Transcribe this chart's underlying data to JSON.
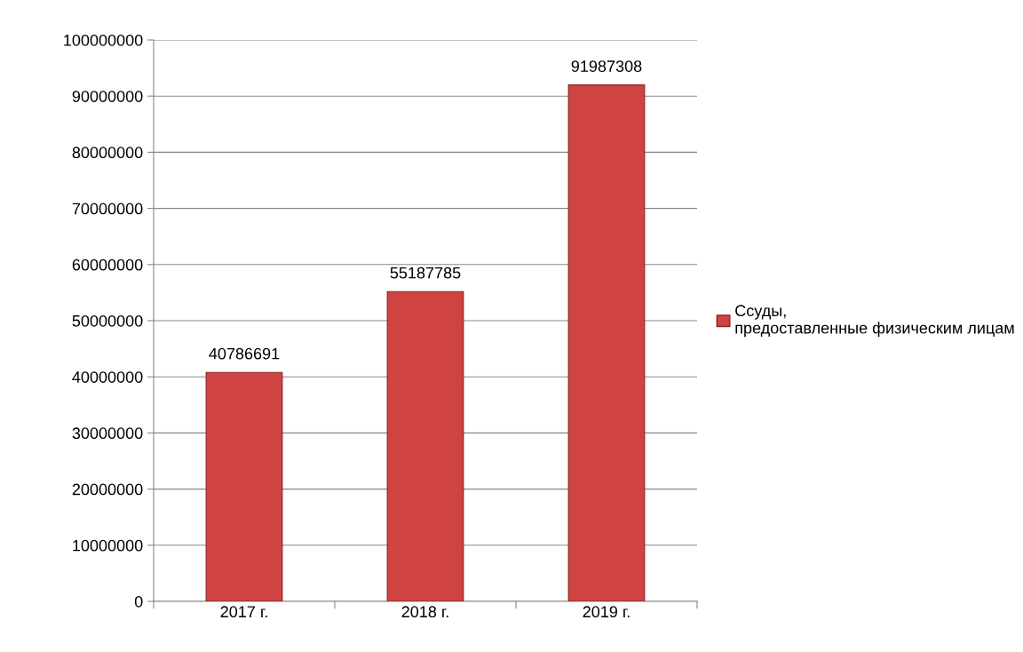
{
  "chart_data": {
    "type": "bar",
    "categories": [
      "2017 г.",
      "2018 г.",
      "2019 г."
    ],
    "series": [
      {
        "name": "Ссуды, предоставленные физическим лицам",
        "color": "#d04343",
        "values": [
          40786691,
          55187785,
          91987308
        ]
      }
    ],
    "ylim": [
      0,
      100000000
    ],
    "yticks": [
      0,
      10000000,
      20000000,
      30000000,
      40000000,
      50000000,
      60000000,
      70000000,
      80000000,
      90000000,
      100000000
    ],
    "grid": "y",
    "legend": "right",
    "data_labels": true
  }
}
